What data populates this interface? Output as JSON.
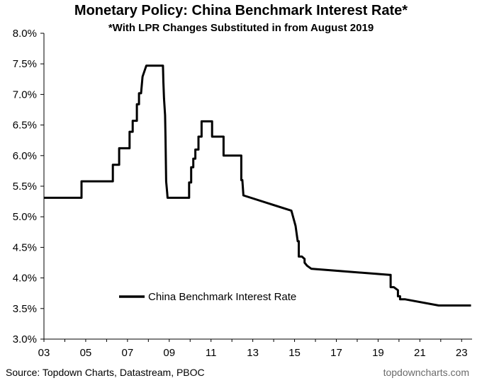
{
  "chart_data": {
    "type": "line",
    "title": "Monetary Policy: China Benchmark Interest Rate*",
    "subtitle": "*With LPR Changes Substituted in from August 2019",
    "xlabel": "",
    "ylabel": "",
    "xlim": [
      2003.0,
      2023.5
    ],
    "ylim": [
      3.0,
      8.0
    ],
    "y_ticks": [
      3.0,
      3.5,
      4.0,
      4.5,
      5.0,
      5.5,
      6.0,
      6.5,
      7.0,
      7.5,
      8.0
    ],
    "y_tick_labels": [
      "3.0%",
      "3.5%",
      "4.0%",
      "4.5%",
      "5.0%",
      "5.5%",
      "6.0%",
      "6.5%",
      "7.0%",
      "7.5%",
      "8.0%"
    ],
    "x_ticks": [
      2003,
      2005,
      2007,
      2009,
      2011,
      2013,
      2015,
      2017,
      2019,
      2021,
      2023
    ],
    "x_tick_labels": [
      "03",
      "05",
      "07",
      "09",
      "11",
      "13",
      "15",
      "17",
      "19",
      "21",
      "23"
    ],
    "grid": false,
    "legend_position": "lower-left",
    "series": [
      {
        "name": "China Benchmark Interest Rate",
        "color": "#000000",
        "x": [
          2003.0,
          2004.8,
          2004.8,
          2006.3,
          2006.3,
          2006.6,
          2006.6,
          2007.1,
          2007.1,
          2007.25,
          2007.25,
          2007.45,
          2007.45,
          2007.55,
          2007.55,
          2007.65,
          2007.72,
          2007.72,
          2007.9,
          2007.9,
          2008.7,
          2008.72,
          2008.75,
          2008.8,
          2008.82,
          2008.85,
          2008.9,
          2008.92,
          2009.95,
          2009.95,
          2010.05,
          2010.05,
          2010.15,
          2010.15,
          2010.25,
          2010.25,
          2010.4,
          2010.4,
          2010.55,
          2010.55,
          2010.75,
          2010.75,
          2011.05,
          2011.05,
          2011.6,
          2011.6,
          2011.75,
          2011.75,
          2012.45,
          2012.45,
          2012.5,
          2012.55,
          2012.55,
          2014.85,
          2014.85,
          2015.05,
          2015.05,
          2015.15,
          2015.2,
          2015.2,
          2015.35,
          2015.35,
          2015.48,
          2015.48,
          2015.6,
          2015.6,
          2015.8,
          2015.8,
          2019.55,
          2019.6,
          2019.6,
          2019.75,
          2019.75,
          2019.95,
          2019.95,
          2020.05,
          2020.05,
          2020.25,
          2020.3,
          2020.3,
          2021.9,
          2021.95,
          2021.95,
          2022.35,
          2022.35,
          2023.05,
          2023.2,
          2023.25,
          2023.35,
          2023.45
        ],
        "y": [
          5.31,
          5.31,
          5.58,
          5.58,
          5.85,
          5.85,
          6.12,
          6.12,
          6.39,
          6.39,
          6.57,
          6.57,
          6.84,
          6.84,
          7.02,
          7.02,
          7.29,
          7.29,
          7.47,
          7.47,
          7.47,
          7.2,
          6.93,
          6.66,
          6.3,
          5.58,
          5.4,
          5.31,
          5.31,
          5.56,
          5.56,
          5.81,
          5.81,
          5.95,
          5.95,
          6.1,
          6.1,
          6.31,
          6.31,
          6.56,
          6.56,
          6.56,
          6.56,
          6.31,
          6.31,
          6.0,
          6.0,
          6.0,
          6.0,
          5.6,
          5.6,
          5.35,
          5.35,
          5.1,
          5.1,
          4.85,
          4.85,
          4.6,
          4.6,
          4.35,
          4.35,
          4.35,
          4.31,
          4.25,
          4.2,
          4.2,
          4.15,
          4.15,
          4.05,
          4.05,
          3.85,
          3.85,
          3.85,
          3.8,
          3.7,
          3.7,
          3.65,
          3.65,
          3.65,
          3.65,
          3.55,
          3.55,
          3.55,
          3.55,
          3.55,
          3.55,
          3.55,
          3.55,
          3.55,
          3.55
        ]
      }
    ]
  },
  "footer": {
    "source": "Source: Topdown Charts, Datastream, PBOC",
    "brand": "topdowncharts.com"
  }
}
